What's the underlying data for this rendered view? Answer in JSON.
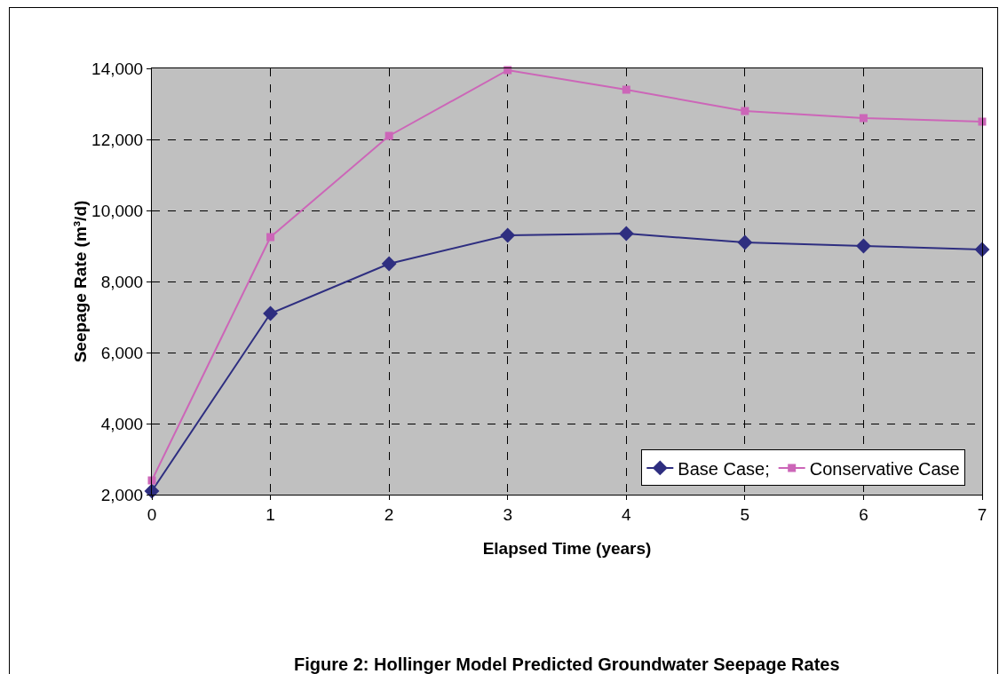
{
  "chart_data": {
    "type": "line",
    "title": "Figure 2: Hollinger Model Predicted Groundwater Seepage Rates",
    "xlabel": "Elapsed Time (years)",
    "ylabel": "Seepage Rate (m³/d)",
    "x": [
      0,
      1,
      2,
      3,
      4,
      5,
      6,
      7
    ],
    "series": [
      {
        "name": "Base Case;",
        "color": "#2e2e80",
        "marker": "diamond",
        "values": [
          2100,
          7100,
          8500,
          9300,
          9350,
          9100,
          9000,
          8900
        ]
      },
      {
        "name": "Conservative Case",
        "color": "#cc66b8",
        "marker": "square",
        "values": [
          2400,
          9250,
          12100,
          13950,
          13400,
          12800,
          12600,
          12500
        ]
      }
    ],
    "xlim": [
      0,
      7
    ],
    "xticks": [
      0,
      1,
      2,
      3,
      4,
      5,
      6,
      7
    ],
    "ylim": [
      2000,
      14000
    ],
    "yticks": [
      {
        "value": 2000,
        "label": "2,000"
      },
      {
        "value": 4000,
        "label": "4,000"
      },
      {
        "value": 6000,
        "label": "6,000"
      },
      {
        "value": 8000,
        "label": "8,000"
      },
      {
        "value": 10000,
        "label": "10,000"
      },
      {
        "value": 12000,
        "label": "12,000"
      },
      {
        "value": 14000,
        "label": "14,000"
      }
    ],
    "grid": true,
    "legend": "bottom right",
    "line_style": "solid"
  }
}
